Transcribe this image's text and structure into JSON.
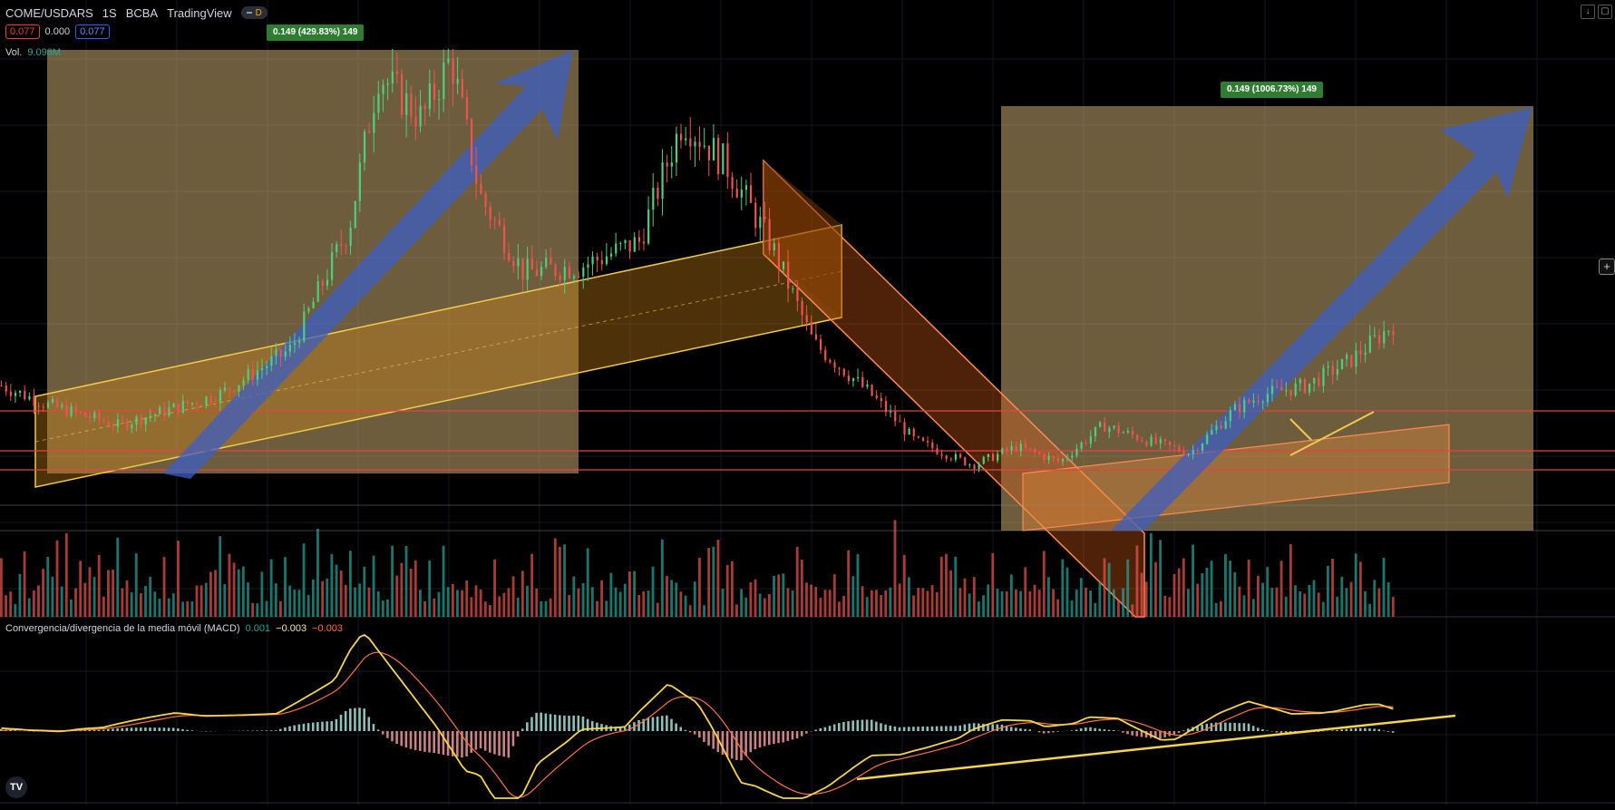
{
  "header": {
    "symbol": "COME/USDARS",
    "interval": "1S",
    "exchange": "BCBA",
    "source": "TradingView",
    "mode_badge": "D"
  },
  "price_boxes": {
    "left": "0.077",
    "middle": "0.000",
    "right": "0.077"
  },
  "volume": {
    "label": "Vol.",
    "value": "9.098M"
  },
  "macd": {
    "label": "Convergencia/divergencia de la media móvil (MACD)",
    "v1": "0.001",
    "v2": "−0.003",
    "v3": "−0.003"
  },
  "measure_tags": {
    "left": "0.149 (429.83%) 149",
    "right": "0.149 (1006.73%) 149"
  },
  "logo_text": "TV",
  "colors": {
    "up": "#26a69a",
    "down": "#ef5350",
    "rect_fill": "#c8aa6e",
    "arrow": "#3d5fc2",
    "channel": "#f2c94c",
    "down_channel": "#ff8a50",
    "hline": "#e04545",
    "macd_line": "#f7d549",
    "signal_line": "#ff7043"
  },
  "chart_data": [
    {
      "type": "candlestick",
      "symbol": "COME/USDARS",
      "interval": "1S",
      "shape": "rise to two peaks early, pullback into rising channel, local peak mid, sharp decline, base, then recovery",
      "anchors_index_relative": [
        [
          0,
          0.058
        ],
        [
          0.03,
          0.052
        ],
        [
          0.08,
          0.045
        ],
        [
          0.15,
          0.055
        ],
        [
          0.2,
          0.07
        ],
        [
          0.24,
          0.11
        ],
        [
          0.26,
          0.16
        ],
        [
          0.29,
          0.145
        ],
        [
          0.31,
          0.165
        ],
        [
          0.33,
          0.12
        ],
        [
          0.36,
          0.095
        ],
        [
          0.4,
          0.097
        ],
        [
          0.44,
          0.105
        ],
        [
          0.47,
          0.145
        ],
        [
          0.5,
          0.13
        ],
        [
          0.53,
          0.105
        ],
        [
          0.56,
          0.072
        ],
        [
          0.6,
          0.055
        ],
        [
          0.63,
          0.04
        ],
        [
          0.67,
          0.032
        ],
        [
          0.7,
          0.038
        ],
        [
          0.73,
          0.033
        ],
        [
          0.76,
          0.045
        ],
        [
          0.79,
          0.04
        ],
        [
          0.82,
          0.036
        ],
        [
          0.85,
          0.05
        ],
        [
          0.87,
          0.055
        ],
        [
          0.9,
          0.058
        ],
        [
          0.93,
          0.066
        ],
        [
          0.96,
          0.078
        ]
      ]
    },
    {
      "type": "bar",
      "name": "Vol.",
      "last_value": "9.098M"
    },
    {
      "type": "line",
      "name": "MACD",
      "values_shown": [
        "0.001",
        "−0.003",
        "−0.003"
      ]
    }
  ]
}
